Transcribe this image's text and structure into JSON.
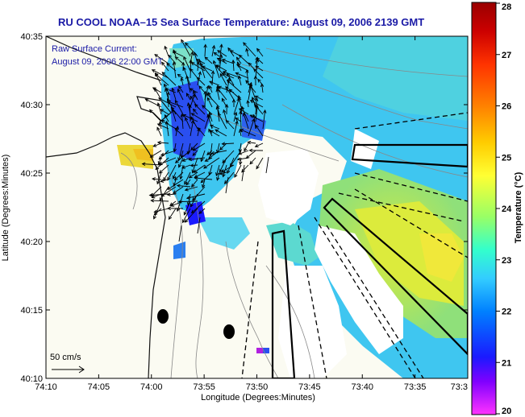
{
  "title": "RU COOL  NOAA–15  Sea Surface Temperature:  August 09, 2006 2139 GMT",
  "current_label": {
    "line1": "Raw Surface Current:",
    "line2": "August 09, 2006 22:00 GMT"
  },
  "scale_label": "50 cm/s",
  "x_axis": {
    "label": "Longitude (Degrees:Minutes)",
    "ticks": [
      "74:10",
      "74:05",
      "74:00",
      "73:55",
      "73:50",
      "73:45",
      "73:40",
      "73:35",
      "73:3"
    ]
  },
  "y_axis": {
    "label": "Latitude (Degrees:Minutes)",
    "ticks": [
      "40:35",
      "40:30",
      "40:25",
      "40:20",
      "40:15",
      "40:10"
    ]
  },
  "colorbar": {
    "label": "Temperature (°C)",
    "ticks": [
      "28",
      "27",
      "26",
      "25",
      "24",
      "23",
      "22",
      "21",
      "20"
    ],
    "colors": [
      "#ff33ff",
      "#8000ff",
      "#1a1aff",
      "#0080ff",
      "#33ccff",
      "#33ffcc",
      "#99ff66",
      "#ffff33",
      "#ffcc00",
      "#ff8000",
      "#ff3300",
      "#cc0000",
      "#990000"
    ]
  },
  "colors": {
    "land": "#fbfbf2",
    "no_data": "#ffffff",
    "sst_cool": "#3fc6f0",
    "sst_mid": "#5cd9d0",
    "sst_warm": "#c8e84a",
    "title": "#1a1aa6"
  }
}
